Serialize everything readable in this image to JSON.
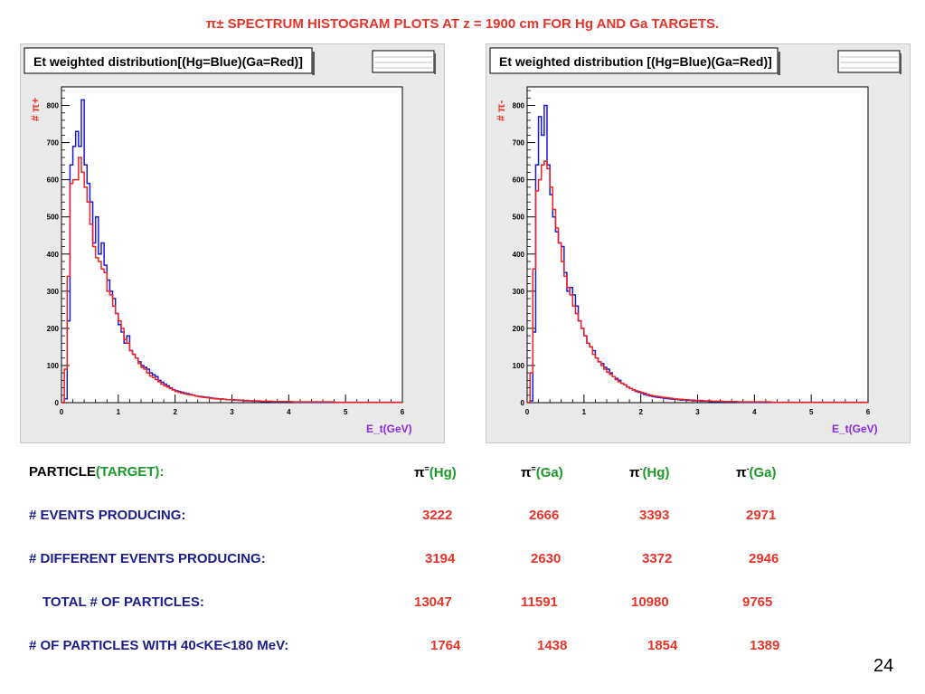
{
  "title": "π±  SPECTRUM HISTOGRAM PLOTS AT z = 1900 cm FOR  Hg AND Ga TARGETS.",
  "page_number": "24",
  "colors": {
    "hg": "#1a1ad6",
    "ga": "#ee2222",
    "accent": "#e8332a",
    "navy": "#1c1c8c",
    "green": "#1a9a2a"
  },
  "chart_data": [
    {
      "type": "line",
      "title": "Et weighted distribution[(Hg=Blue)(Ga=Red)]",
      "xlabel": "E_t(GeV)",
      "ylabel": "# π+",
      "ylabel_sup": "+",
      "xlim": [
        0,
        6
      ],
      "ylim": [
        0,
        850
      ],
      "x_ticks": [
        0,
        1,
        2,
        3,
        4,
        5,
        6
      ],
      "y_ticks": [
        0,
        100,
        200,
        300,
        400,
        500,
        600,
        700,
        800
      ],
      "bin_width": 0.05,
      "series": [
        {
          "name": "Hg",
          "color": "#1a1ad6",
          "values": [
            0,
            10,
            220,
            640,
            690,
            730,
            690,
            815,
            640,
            590,
            540,
            430,
            500,
            400,
            430,
            370,
            330,
            300,
            280,
            240,
            210,
            190,
            160,
            180,
            140,
            130,
            120,
            110,
            100,
            95,
            90,
            80,
            75,
            70,
            60,
            55,
            50,
            45,
            40,
            35,
            32,
            30,
            28,
            26,
            24,
            22,
            20,
            18,
            17,
            16,
            15,
            14,
            13,
            12,
            11,
            10,
            10,
            9,
            8,
            8,
            7,
            7,
            6,
            6,
            5,
            5,
            5,
            4,
            4,
            4,
            3,
            3,
            3,
            3,
            2,
            2,
            2,
            2,
            2,
            2,
            2,
            2,
            1,
            1,
            1,
            1,
            1,
            1,
            1,
            1,
            1,
            1,
            1,
            1,
            1,
            1,
            1,
            1,
            1,
            1,
            1,
            1,
            1,
            1,
            1,
            1,
            1,
            1,
            1,
            1,
            1,
            1,
            1,
            1,
            1,
            1,
            1,
            1,
            1,
            1
          ]
        },
        {
          "name": "Ga",
          "color": "#ee2222",
          "values": [
            0,
            90,
            340,
            590,
            600,
            600,
            660,
            620,
            580,
            540,
            480,
            420,
            390,
            380,
            360,
            350,
            300,
            290,
            260,
            240,
            220,
            200,
            170,
            160,
            140,
            130,
            120,
            105,
            95,
            90,
            80,
            72,
            68,
            62,
            56,
            50,
            45,
            42,
            38,
            34,
            30,
            28,
            26,
            24,
            22,
            21,
            20,
            18,
            16,
            15,
            14,
            13,
            12,
            11,
            10,
            10,
            9,
            9,
            8,
            8,
            8,
            7,
            7,
            6,
            6,
            6,
            5,
            5,
            5,
            5,
            4,
            4,
            4,
            4,
            3,
            3,
            3,
            3,
            3,
            3,
            3,
            2,
            2,
            2,
            2,
            2,
            2,
            2,
            2,
            2,
            2,
            2,
            2,
            2,
            2,
            2,
            1,
            1,
            1,
            1,
            1,
            1,
            1,
            1,
            1,
            1,
            1,
            1,
            1,
            1,
            1,
            1,
            1,
            1,
            1,
            1,
            1,
            1,
            1,
            1
          ]
        }
      ]
    },
    {
      "type": "line",
      "title": "Et weighted distribution [(Hg=Blue)(Ga=Red)]",
      "xlabel": "E_t(GeV)",
      "ylabel": "# π-",
      "ylabel_sup": "-",
      "xlim": [
        0,
        6
      ],
      "ylim": [
        0,
        850
      ],
      "x_ticks": [
        0,
        1,
        2,
        3,
        4,
        5,
        6
      ],
      "y_ticks": [
        0,
        100,
        200,
        300,
        400,
        500,
        600,
        700,
        800
      ],
      "bin_width": 0.05,
      "series": [
        {
          "name": "Hg",
          "color": "#1a1ad6",
          "values": [
            0,
            5,
            190,
            640,
            770,
            720,
            800,
            640,
            560,
            500,
            460,
            430,
            420,
            350,
            300,
            310,
            290,
            260,
            220,
            200,
            180,
            160,
            150,
            140,
            120,
            110,
            105,
            95,
            90,
            80,
            70,
            65,
            60,
            52,
            48,
            42,
            38,
            34,
            30,
            28,
            25,
            22,
            20,
            18,
            16,
            15,
            14,
            13,
            12,
            11,
            10,
            9,
            9,
            8,
            7,
            7,
            6,
            6,
            5,
            5,
            5,
            4,
            4,
            4,
            3,
            3,
            3,
            3,
            2,
            2,
            2,
            2,
            2,
            2,
            2,
            1,
            1,
            1,
            1,
            1,
            1,
            1,
            1,
            1,
            1,
            1,
            1,
            1,
            1,
            1,
            1,
            1,
            1,
            1,
            1,
            1,
            1,
            1,
            1,
            1,
            1,
            1,
            1,
            1,
            1,
            1,
            1,
            1,
            1,
            1,
            1,
            1,
            1,
            1,
            1,
            1,
            1,
            1,
            1,
            1
          ]
        },
        {
          "name": "Ga",
          "color": "#ee2222",
          "values": [
            0,
            80,
            360,
            570,
            600,
            640,
            650,
            630,
            580,
            520,
            470,
            430,
            380,
            340,
            310,
            290,
            260,
            240,
            220,
            200,
            180,
            160,
            150,
            130,
            120,
            110,
            100,
            90,
            82,
            76,
            70,
            62,
            56,
            52,
            48,
            42,
            38,
            35,
            32,
            30,
            27,
            25,
            22,
            20,
            18,
            17,
            16,
            15,
            14,
            13,
            12,
            11,
            10,
            9,
            9,
            8,
            8,
            7,
            7,
            6,
            6,
            6,
            5,
            5,
            5,
            4,
            4,
            4,
            4,
            3,
            3,
            3,
            3,
            3,
            2,
            2,
            2,
            2,
            2,
            2,
            2,
            2,
            2,
            2,
            2,
            2,
            1,
            1,
            1,
            1,
            1,
            1,
            1,
            1,
            1,
            1,
            1,
            1,
            1,
            1,
            1,
            1,
            1,
            1,
            1,
            1,
            1,
            1,
            1,
            1,
            1,
            1,
            1,
            1,
            1,
            1,
            1,
            1,
            1,
            1
          ]
        }
      ]
    }
  ],
  "table": {
    "header": {
      "particle": "PARTICLE",
      "target": "(TARGET):",
      "cols": [
        {
          "sym": "π",
          "sup": "=",
          "tgt": "(Hg)"
        },
        {
          "sym": "π",
          "sup": "=",
          "tgt": "(Ga)"
        },
        {
          "sym": "π",
          "sup": "-",
          "tgt": "(Hg)"
        },
        {
          "sym": "π",
          "sup": "-",
          "tgt": "(Ga)"
        }
      ]
    },
    "rows": [
      {
        "label": "# EVENTS PRODUCING:",
        "values": [
          "3222",
          "2666",
          "3393",
          "2971"
        ]
      },
      {
        "label": "# DIFFERENT EVENTS  PRODUCING:",
        "values": [
          "3194",
          "2630",
          "3372",
          "2946"
        ]
      },
      {
        "label": "TOTAL #    OF PARTICLES:",
        "values": [
          "13047",
          "11591",
          "10980",
          "9765"
        ]
      },
      {
        "label": "#  OF PARTICLES WITH 40<KE<180 MeV:",
        "values": [
          "1764",
          "1438",
          "1854",
          "1389"
        ]
      }
    ]
  }
}
